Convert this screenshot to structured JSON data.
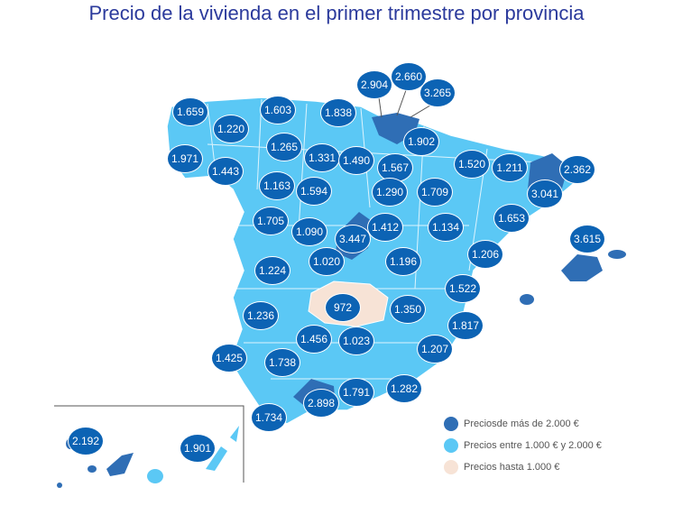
{
  "title": "Precio de la vivienda en el primer trimestre por provincia",
  "colors": {
    "high": "#2f6eb5",
    "mid": "#5bc8f5",
    "low": "#f7e3d6",
    "label_bg": "#0c63b4"
  },
  "legend": [
    {
      "label": "Preciosde más de 2.000 €",
      "color": "#2f6eb5"
    },
    {
      "label": "Precios entre 1.000 € y 2.000 €",
      "color": "#5bc8f5"
    },
    {
      "label": "Precios hasta 1.000 €",
      "color": "#f7e3d6"
    }
  ],
  "province_prices": [
    "1.659",
    "1.220",
    "1.603",
    "1.838",
    "2.904",
    "2.660",
    "3.265",
    "1.971",
    "1.443",
    "1.265",
    "1.331",
    "1.490",
    "1.902",
    "1.567",
    "1.520",
    "1.211",
    "2.362",
    "1.163",
    "1.594",
    "1.290",
    "1.709",
    "3.041",
    "1.705",
    "1.090",
    "1.412",
    "1.134",
    "1.653",
    "3.447",
    "3.615",
    "1.020",
    "1.196",
    "1.206",
    "1.224",
    "1.522",
    "972",
    "1.350",
    "1.236",
    "1.817",
    "1.456",
    "1.023",
    "1.207",
    "1.425",
    "1.738",
    "1.791",
    "1.282",
    "2.898",
    "1.734",
    "2.192",
    "1.901"
  ]
}
